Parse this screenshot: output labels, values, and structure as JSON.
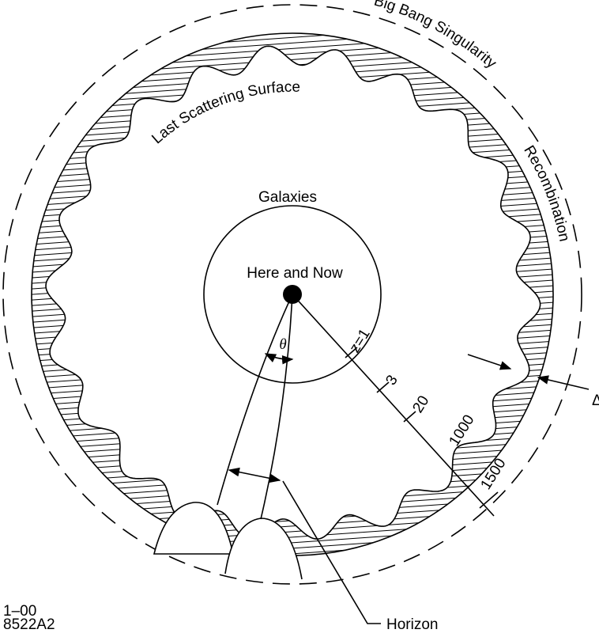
{
  "labels": {
    "big_bang": "Big Bang Singularity",
    "last_scattering": "Last Scattering Surface",
    "recombination": "Recombination",
    "galaxies": "Galaxies",
    "here_now": "Here and Now",
    "theta": "θ",
    "delta": "Δ",
    "horizon": "Horizon"
  },
  "redshift_ticks": [
    "z=1",
    "3",
    "20",
    "1000",
    "1500"
  ],
  "footer": {
    "date": "1–00",
    "code": "8522A2"
  }
}
